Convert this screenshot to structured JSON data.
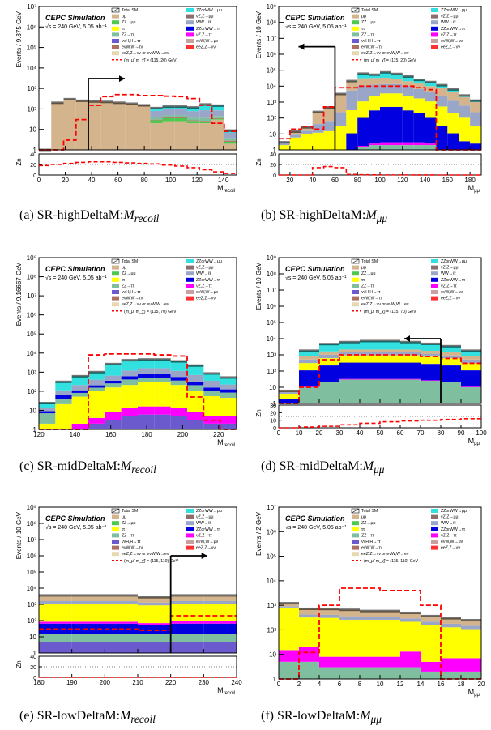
{
  "colors": {
    "mumu": "#d4b48c",
    "zz_mumu": "#4ec84e",
    "tautau": "#ffff00",
    "zz_tautau": "#7fbfa0",
    "vvh": "#6a5acd",
    "evw": "#b07060",
    "eez": "#e8d8b0",
    "zzorww": "#33e0e0",
    "vz": "#8c6e6e",
    "ww": "#9aa6c8",
    "zzww_tautau": "#0000e0",
    "vz_tautau": "#ff00ff",
    "evw_muv": "#c8a0a0",
    "eez2": "#ff3030",
    "signal": "#ff0000",
    "total": "#000000"
  },
  "legend_labels": {
    "total": "Total SM",
    "mumu": "μμ",
    "zz_mumu": "ZZ→μμ",
    "tautau": "ττ",
    "zz_tautau": "ZZ→ττ",
    "vvh": "ννH,H→ττ",
    "evw": "eνW,W→τν",
    "eez": "eeZ,Z→νν or eνW,W→eν",
    "zzorww": "ZZorWW→μμ",
    "vz": "νZ,Z→μμ",
    "ww": "WW→ℓℓ",
    "zzww_tautau": "ZZorWW→ττ",
    "vz_tautau": "νZ,Z→ττ",
    "evw_muv": "eνW,W→μν",
    "eez2": "eeZ,Z→νν"
  },
  "chart_data": [
    {
      "type": "bar",
      "panel_letter": "(a)",
      "caption_prefix": "SR-highDeltaM:",
      "caption_var": "M",
      "caption_sub": "recoil",
      "title": "CEPC Simulation",
      "subtitle": "√s = 240 GeV, 5.05 ab⁻¹",
      "signal_label": "(m_μ̃, m_χ̃) = (115, 20) GeV",
      "ylabel": "Events / 9.375 GeV",
      "xlabel": "M_recoil",
      "xlim": [
        0,
        150
      ],
      "ylog": [
        1,
        10000000
      ],
      "yticks": [
        "1",
        "10",
        "10²",
        "10³",
        "10⁴",
        "10⁵",
        "10⁶",
        "10⁷"
      ],
      "xticks": [
        0,
        20,
        40,
        60,
        80,
        100,
        120,
        140
      ],
      "zn_label": "Zn",
      "zn_ylim": [
        0,
        40
      ],
      "zn_yticks": [
        0,
        20,
        40
      ],
      "zn_ref": 20,
      "zn_values": [
        18,
        20,
        22,
        24,
        25,
        25,
        24,
        23,
        22,
        21,
        19,
        17,
        14,
        10,
        6,
        3
      ],
      "x_edges": [
        0,
        9.375,
        18.75,
        28.125,
        37.5,
        46.875,
        56.25,
        65.625,
        75,
        84.375,
        93.75,
        103.125,
        112.5,
        121.875,
        131.25,
        140.625,
        150
      ],
      "components": [
        "mumu",
        "zz_mumu",
        "vvh",
        "evw",
        "zz_tautau",
        "ww",
        "zzorww"
      ],
      "stack": [
        [
          1,
          0,
          0,
          0,
          0,
          0,
          0
        ],
        [
          200,
          0,
          0,
          0,
          0,
          0,
          0
        ],
        [
          300,
          0,
          0,
          0,
          0,
          0,
          0
        ],
        [
          250,
          0,
          0,
          0,
          0,
          0,
          0
        ],
        [
          230,
          0,
          0,
          0,
          0,
          0,
          0
        ],
        [
          220,
          0,
          0,
          0,
          0,
          0,
          0
        ],
        [
          200,
          0,
          0,
          0,
          0,
          0,
          0
        ],
        [
          180,
          0,
          0,
          0,
          0,
          0,
          0
        ],
        [
          150,
          0,
          0,
          0,
          0,
          0,
          0
        ],
        [
          20,
          8,
          0,
          2,
          10,
          40,
          30
        ],
        [
          25,
          10,
          0,
          3,
          12,
          45,
          35
        ],
        [
          25,
          10,
          0,
          3,
          12,
          45,
          35
        ],
        [
          20,
          6,
          0,
          2,
          10,
          40,
          40
        ],
        [
          20,
          4,
          0,
          2,
          10,
          50,
          80
        ],
        [
          30,
          3,
          0,
          2,
          10,
          40,
          60
        ],
        [
          2,
          0.5,
          0,
          0.3,
          1,
          3,
          2
        ]
      ],
      "signal": [
        0,
        1,
        3,
        30,
        150,
        400,
        500,
        500,
        450,
        450,
        420,
        400,
        320,
        150,
        20,
        8
      ],
      "cut_x": 37.5,
      "arrow_dir": "right",
      "arrow_y": 3000
    },
    {
      "type": "bar",
      "panel_letter": "(b)",
      "caption_prefix": "SR-highDeltaM:",
      "caption_var": "M",
      "caption_sub": "μμ",
      "title": "CEPC Simulation",
      "subtitle": "√s = 240 GeV, 5.05 ab⁻¹",
      "signal_label": "(m_μ̃, m_χ̃) = (115, 20) GeV",
      "ylabel": "Events / 10 GeV",
      "xlabel": "M_μμ",
      "xlim": [
        10,
        190
      ],
      "ylog": [
        1,
        1000000000
      ],
      "yticks": [
        "1",
        "10",
        "10²",
        "10³",
        "10⁴",
        "10⁵",
        "10⁶",
        "10⁷",
        "10⁸",
        "10⁹"
      ],
      "xticks": [
        20,
        40,
        60,
        80,
        100,
        120,
        140,
        160,
        180
      ],
      "zn_label": "Zn",
      "zn_ylim": [
        0,
        40
      ],
      "zn_yticks": [
        0,
        20,
        40
      ],
      "zn_ref": 20,
      "zn_values": [
        0,
        0,
        0,
        14,
        16,
        14,
        1,
        0.5,
        0.3,
        0.2,
        0.2,
        0.2,
        0.1,
        0.1,
        0,
        0,
        0,
        0
      ],
      "x_edges": [
        10,
        20,
        30,
        40,
        50,
        60,
        70,
        80,
        90,
        100,
        110,
        120,
        130,
        140,
        150,
        160,
        170,
        180,
        190
      ],
      "components": [
        "zz_tautau",
        "vz_tautau",
        "zzww_tautau",
        "tautau",
        "ww",
        "mumu",
        "zzorww"
      ],
      "stack": [
        [
          0,
          0,
          0,
          2,
          1,
          0,
          0
        ],
        [
          0,
          0,
          0,
          6,
          3,
          5,
          0
        ],
        [
          0,
          0,
          0,
          10,
          6,
          10,
          0
        ],
        [
          0,
          0,
          0,
          12,
          30,
          200,
          0
        ],
        [
          0,
          0,
          0,
          15,
          50,
          400,
          0
        ],
        [
          0,
          0,
          0,
          30,
          200,
          3000,
          0
        ],
        [
          1,
          0,
          10,
          300,
          5000,
          15000,
          500
        ],
        [
          1.5,
          0.3,
          100,
          1000,
          10000,
          20000,
          30000
        ],
        [
          2,
          0.5,
          300,
          2000,
          10000,
          20000,
          20000
        ],
        [
          2,
          1,
          500,
          3000,
          10000,
          20000,
          40000
        ],
        [
          2,
          1,
          500,
          3000,
          10000,
          15000,
          30000
        ],
        [
          2,
          1,
          300,
          2000,
          8000,
          10000,
          20000
        ],
        [
          2,
          1,
          200,
          1500,
          5000,
          8000,
          10000
        ],
        [
          2,
          0.5,
          100,
          1000,
          3000,
          6000,
          8000
        ],
        [
          1,
          0,
          30,
          500,
          2000,
          5000,
          4000
        ],
        [
          1,
          0,
          10,
          200,
          1000,
          3000,
          2000
        ],
        [
          0.5,
          0,
          3,
          100,
          500,
          1500,
          500
        ],
        [
          0.5,
          0,
          2,
          30,
          200,
          800,
          200
        ]
      ],
      "signal": [
        5,
        20,
        30,
        20,
        500,
        8000,
        8000,
        10000,
        10000,
        10000,
        10000,
        10000,
        8000,
        6000,
        1,
        0,
        0,
        0
      ],
      "cut_x": 60,
      "arrow_dir": "left",
      "arrow_y": 3000000
    },
    {
      "type": "bar",
      "panel_letter": "(c)",
      "caption_prefix": "SR-midDeltaM:",
      "caption_var": "M",
      "caption_sub": "recoil",
      "title": "CEPC Simulation",
      "subtitle": "√s = 240 GeV, 5.05 ab⁻¹",
      "signal_label": "(m_μ̃, m_χ̃) = (115, 70) GeV",
      "ylabel": "Events / 9.16667 GeV",
      "xlabel": "M_recoil",
      "xlim": [
        120,
        230
      ],
      "ylog": [
        1,
        1000000000
      ],
      "yticks": [
        "1",
        "10",
        "10²",
        "10³",
        "10⁴",
        "10⁵",
        "10⁶",
        "10⁷",
        "10⁸",
        "10⁹"
      ],
      "xticks": [
        120,
        140,
        160,
        180,
        200,
        220
      ],
      "zn_label": "",
      "zn_ylim": null,
      "zn_yticks": [],
      "zn_ref": null,
      "zn_values": [],
      "x_edges": [
        120,
        129.1667,
        138.3333,
        147.5,
        156.6667,
        165.8333,
        175,
        184.1667,
        193.3333,
        202.5,
        211.6667,
        220.8333,
        230
      ],
      "components": [
        "vvh",
        "vz_tautau",
        "tautau",
        "zz_tautau",
        "zzww_tautau",
        "ww",
        "zzorww"
      ],
      "stack": [
        [
          1,
          0,
          1,
          5,
          2,
          5,
          10
        ],
        [
          1,
          0,
          20,
          20,
          20,
          50,
          200
        ],
        [
          1,
          1,
          50,
          30,
          30,
          100,
          400
        ],
        [
          2,
          2,
          100,
          50,
          50,
          200,
          600
        ],
        [
          3,
          5,
          150,
          100,
          100,
          300,
          2000
        ],
        [
          5,
          8,
          200,
          200,
          200,
          600,
          3000
        ],
        [
          6,
          10,
          300,
          200,
          300,
          800,
          3000
        ],
        [
          6,
          10,
          300,
          200,
          300,
          800,
          3000
        ],
        [
          5,
          8,
          200,
          150,
          200,
          600,
          2500
        ],
        [
          3,
          5,
          100,
          100,
          100,
          400,
          1500
        ],
        [
          2,
          3,
          50,
          50,
          50,
          200,
          500
        ],
        [
          2,
          3,
          40,
          40,
          40,
          100,
          300
        ]
      ],
      "signal": [
        0,
        0,
        0,
        8000,
        9000,
        9000,
        9000,
        8000,
        7000,
        50,
        3,
        1
      ],
      "cut_x": null,
      "arrow_dir": null,
      "arrow_y": null
    },
    {
      "type": "bar",
      "panel_letter": "(d)",
      "caption_prefix": "SR-midDeltaM:",
      "caption_var": "M",
      "caption_sub": "μμ",
      "title": "CEPC Simulation",
      "subtitle": "√s = 240 GeV, 5.05 ab⁻¹",
      "signal_label": "(m_μ̃, m_χ̃) = (115, 70) GeV",
      "ylabel": "Events / 10 GeV",
      "xlabel": "M_μμ",
      "xlim": [
        0,
        100
      ],
      "ylog": [
        1,
        1000000000
      ],
      "yticks": [
        "1",
        "10",
        "10²",
        "10³",
        "10⁴",
        "10⁵",
        "10⁶",
        "10⁷",
        "10⁸",
        "10⁹"
      ],
      "xticks": [
        0,
        10,
        20,
        30,
        40,
        50,
        60,
        70,
        80,
        90,
        100
      ],
      "zn_label": "Zn",
      "zn_ylim": [
        0,
        30
      ],
      "zn_yticks": [
        0,
        10,
        20,
        30
      ],
      "zn_ref": 15,
      "zn_values": [
        0,
        1,
        2,
        4,
        6,
        8,
        9,
        10,
        11,
        12
      ],
      "x_edges": [
        0,
        10,
        20,
        30,
        40,
        50,
        60,
        70,
        80,
        90,
        100
      ],
      "components": [
        "zz_tautau",
        "vz_tautau",
        "zzww_tautau",
        "tautau",
        "ww",
        "mumu",
        "zzorww"
      ],
      "stack": [
        [
          1,
          0,
          1,
          2,
          1,
          1,
          0
        ],
        [
          10,
          1,
          100,
          200,
          200,
          300,
          1000
        ],
        [
          20,
          2,
          200,
          400,
          400,
          600,
          3000
        ],
        [
          30,
          3,
          300,
          600,
          500,
          700,
          4000
        ],
        [
          30,
          3,
          300,
          600,
          500,
          700,
          5000
        ],
        [
          30,
          3,
          300,
          600,
          500,
          700,
          5000
        ],
        [
          30,
          3,
          300,
          600,
          500,
          700,
          4000
        ],
        [
          25,
          2,
          250,
          500,
          400,
          600,
          3000
        ],
        [
          20,
          2,
          200,
          400,
          300,
          500,
          2000
        ],
        [
          10,
          1,
          100,
          200,
          200,
          300,
          1000
        ]
      ],
      "signal": [
        1,
        10,
        500,
        1000,
        1000,
        1000,
        1000,
        800,
        600,
        300
      ],
      "cut_x": 80,
      "arrow_dir": "left",
      "arrow_y": 10000
    },
    {
      "type": "bar",
      "panel_letter": "(e)",
      "caption_prefix": "SR-lowDeltaM:",
      "caption_var": "M",
      "caption_sub": "recoil",
      "title": "CEPC Simulation",
      "subtitle": "√s = 240 GeV, 5.05 ab⁻¹",
      "signal_label": "(m_μ̃, m_χ̃) = (115, 110) GeV",
      "ylabel": "Events / 10 GeV",
      "xlabel": "M_recoil",
      "xlim": [
        180,
        240
      ],
      "ylog": [
        1,
        1000000000
      ],
      "yticks": [
        "1",
        "10",
        "10²",
        "10³",
        "10⁴",
        "10⁵",
        "10⁶",
        "10⁷",
        "10⁸",
        "10⁹"
      ],
      "xticks": [
        180,
        190,
        200,
        210,
        220,
        230,
        240
      ],
      "zn_label": "Zn",
      "zn_ylim": [
        0,
        40
      ],
      "zn_yticks": [
        0,
        20,
        40
      ],
      "zn_ref": 20,
      "zn_values": [
        0,
        0,
        0,
        0,
        0,
        0
      ],
      "x_edges": [
        180,
        190,
        200,
        210,
        220,
        230,
        240
      ],
      "components": [
        "vvh",
        "zz_tautau",
        "zzww_tautau",
        "vz_tautau",
        "tautau",
        "ww",
        "mumu"
      ],
      "stack": [
        [
          5,
          10,
          50,
          20,
          1000,
          500,
          2000
        ],
        [
          5,
          10,
          50,
          20,
          1000,
          500,
          2000
        ],
        [
          5,
          10,
          50,
          20,
          1000,
          500,
          2000
        ],
        [
          5,
          10,
          40,
          15,
          800,
          400,
          1500
        ],
        [
          5,
          10,
          50,
          30,
          1000,
          500,
          2000
        ],
        [
          5,
          10,
          50,
          30,
          1000,
          500,
          2000
        ]
      ],
      "signal": [
        30,
        30,
        30,
        25,
        200,
        200
      ],
      "cut_x": 220,
      "arrow_dir": "right",
      "arrow_y": 1000000
    },
    {
      "type": "bar",
      "panel_letter": "(f)",
      "caption_prefix": "SR-lowDeltaM:",
      "caption_var": "M",
      "caption_sub": "μμ",
      "title": "CEPC Simulation",
      "subtitle": "√s = 240 GeV, 5.05 ab⁻¹",
      "signal_label": "(m_μ̃, m_χ̃) = (115, 110) GeV",
      "ylabel": "Events / 2 GeV",
      "xlabel": "M_μμ",
      "xlim": [
        0,
        20
      ],
      "ylog": [
        1,
        10000000
      ],
      "yticks": [
        "1",
        "10",
        "10²",
        "10³",
        "10⁴",
        "10⁵",
        "10⁶",
        "10⁷"
      ],
      "xticks": [
        0,
        2,
        4,
        6,
        8,
        10,
        12,
        14,
        16,
        18,
        20
      ],
      "zn_label": "",
      "zn_ylim": null,
      "zn_yticks": [],
      "zn_ref": null,
      "zn_values": [],
      "x_edges": [
        0,
        2,
        4,
        6,
        8,
        10,
        12,
        14,
        16,
        18,
        20
      ],
      "components": [
        "zz_tautau",
        "vz_tautau",
        "tautau",
        "ww",
        "mumu"
      ],
      "stack": [
        [
          5,
          10,
          800,
          100,
          300
        ],
        [
          5,
          15,
          300,
          100,
          300
        ],
        [
          3,
          5,
          300,
          100,
          300
        ],
        [
          3,
          5,
          250,
          100,
          300
        ],
        [
          3,
          5,
          250,
          80,
          250
        ],
        [
          3,
          5,
          250,
          80,
          250
        ],
        [
          3,
          10,
          200,
          80,
          200
        ],
        [
          2,
          3,
          150,
          60,
          150
        ],
        [
          2,
          5,
          120,
          50,
          120
        ],
        [
          2,
          5,
          100,
          40,
          100
        ]
      ],
      "signal": [
        1,
        12,
        1000,
        5000,
        5000,
        4000,
        4000,
        1000,
        1,
        1
      ],
      "cut_x": null,
      "arrow_dir": null,
      "arrow_y": null
    }
  ]
}
